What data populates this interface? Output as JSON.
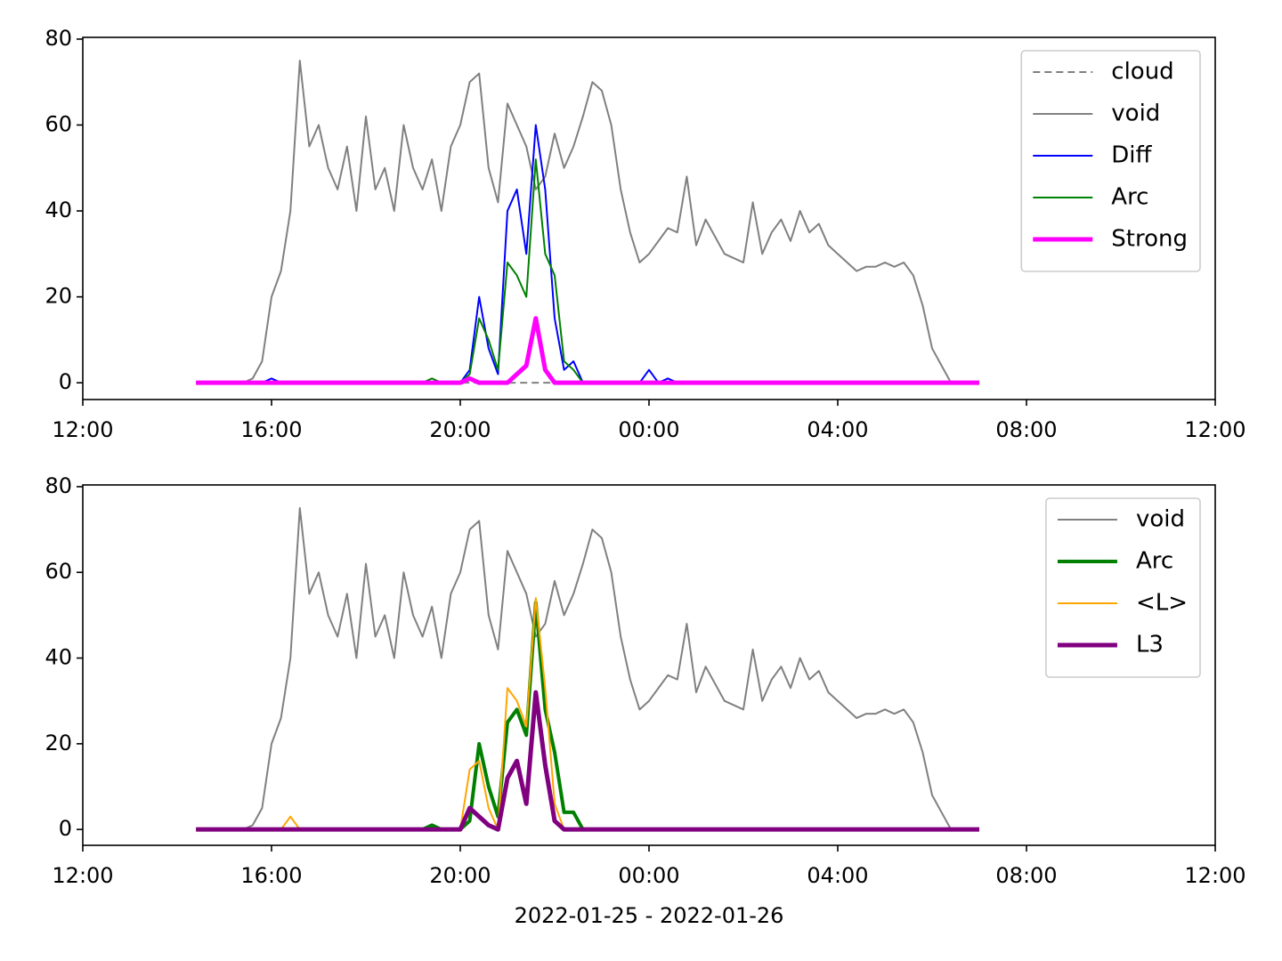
{
  "chart_data": [
    {
      "type": "line",
      "x": [
        14.4,
        14.6,
        14.8,
        15,
        15.2,
        15.4,
        15.6,
        15.8,
        16,
        16.2,
        16.4,
        16.6,
        16.8,
        17,
        17.2,
        17.4,
        17.6,
        17.8,
        18,
        18.2,
        18.4,
        18.6,
        18.8,
        19,
        19.2,
        19.4,
        19.6,
        19.8,
        20,
        20.2,
        20.4,
        20.6,
        20.8,
        21,
        21.2,
        21.4,
        21.6,
        21.8,
        22,
        22.2,
        22.4,
        22.6,
        22.8,
        23,
        23.2,
        23.4,
        23.6,
        23.8,
        24,
        24.2,
        24.4,
        24.6,
        24.8,
        25,
        25.2,
        25.4,
        25.6,
        25.8,
        26,
        26.2,
        26.4,
        26.6,
        26.8,
        27,
        27.2,
        27.4,
        27.6,
        27.8,
        28,
        28.2,
        28.4,
        28.6,
        28.8,
        29,
        29.2,
        29.4,
        29.6,
        29.8,
        30,
        30.2,
        30.4,
        30.6,
        30.8,
        31
      ],
      "xlim": [
        12,
        36
      ],
      "xticks": [
        {
          "value": 12,
          "label": "12:00"
        },
        {
          "value": 16,
          "label": "16:00"
        },
        {
          "value": 20,
          "label": "20:00"
        },
        {
          "value": 24,
          "label": "00:00"
        },
        {
          "value": 28,
          "label": "04:00"
        },
        {
          "value": 32,
          "label": "08:00"
        },
        {
          "value": 36,
          "label": "12:00"
        }
      ],
      "ylim": [
        -3.9,
        80.4
      ],
      "yticks": [
        0,
        20,
        40,
        60,
        80
      ],
      "legend": "upper right",
      "series": [
        {
          "name": "cloud",
          "color": "#808080",
          "linestyle": "dashed",
          "linewidth": 2,
          "values": [
            0,
            0,
            0,
            0,
            0,
            0,
            0,
            0,
            0,
            0,
            0,
            0,
            0,
            0,
            0,
            0,
            0,
            0,
            0,
            0,
            0,
            0,
            0,
            0,
            0,
            0,
            0,
            0,
            0,
            0,
            0,
            0,
            0,
            0,
            0,
            0,
            0,
            0,
            0,
            0,
            0,
            0,
            0,
            0,
            0,
            0,
            0,
            0,
            0,
            0,
            0,
            0,
            0,
            0,
            0,
            0,
            0,
            0,
            0,
            0,
            0,
            0,
            0,
            0,
            0,
            0,
            0,
            0,
            0,
            0,
            0,
            0,
            0,
            0,
            0,
            0,
            0,
            0,
            0,
            0,
            0,
            0,
            0,
            0
          ]
        },
        {
          "name": "void",
          "color": "#808080",
          "linestyle": "solid",
          "linewidth": 2,
          "values": [
            0,
            0,
            0,
            0,
            0,
            0,
            1,
            5,
            20,
            26,
            40,
            75,
            55,
            60,
            50,
            45,
            55,
            40,
            62,
            45,
            50,
            40,
            60,
            50,
            45,
            52,
            40,
            55,
            60,
            70,
            72,
            50,
            42,
            65,
            60,
            55,
            45,
            48,
            58,
            50,
            55,
            62,
            70,
            68,
            60,
            45,
            35,
            28,
            30,
            33,
            36,
            35,
            48,
            32,
            38,
            34,
            30,
            29,
            28,
            42,
            30,
            35,
            38,
            33,
            40,
            35,
            37,
            32,
            30,
            28,
            26,
            27,
            27,
            28,
            27,
            28,
            25,
            18,
            8,
            4,
            0,
            0,
            0,
            0
          ]
        },
        {
          "name": "Diff",
          "color": "#0000ff",
          "linestyle": "solid",
          "linewidth": 2,
          "values": [
            0,
            0,
            0,
            0,
            0,
            0,
            0,
            0,
            1,
            0,
            0,
            0,
            0,
            0,
            0,
            0,
            0,
            0,
            0,
            0,
            0,
            0,
            0,
            0,
            0,
            0,
            0,
            0,
            0,
            3,
            20,
            8,
            2,
            40,
            45,
            30,
            60,
            45,
            15,
            3,
            5,
            0,
            0,
            0,
            0,
            0,
            0,
            0,
            3,
            0,
            1,
            0,
            0,
            0,
            0,
            0,
            0,
            0,
            0,
            0,
            0,
            0,
            0,
            0,
            0,
            0,
            0,
            0,
            0,
            0,
            0,
            0,
            0,
            0,
            0,
            0,
            0,
            0,
            0,
            0,
            0,
            0,
            0,
            0
          ]
        },
        {
          "name": "Arc",
          "color": "#008000",
          "linestyle": "solid",
          "linewidth": 2,
          "values": [
            0,
            0,
            0,
            0,
            0,
            0,
            0,
            0,
            0,
            0,
            0,
            0,
            0,
            0,
            0,
            0,
            0,
            0,
            0,
            0,
            0,
            0,
            0,
            0,
            0,
            1,
            0,
            0,
            0,
            2,
            15,
            10,
            3,
            28,
            25,
            20,
            52,
            30,
            25,
            5,
            3,
            0,
            0,
            0,
            0,
            0,
            0,
            0,
            0,
            0,
            0,
            0,
            0,
            0,
            0,
            0,
            0,
            0,
            0,
            0,
            0,
            0,
            0,
            0,
            0,
            0,
            0,
            0,
            0,
            0,
            0,
            0,
            0,
            0,
            0,
            0,
            0,
            0,
            0,
            0,
            0,
            0,
            0,
            0
          ]
        },
        {
          "name": "Strong",
          "color": "#ff00ff",
          "linestyle": "solid",
          "linewidth": 5,
          "values": [
            0,
            0,
            0,
            0,
            0,
            0,
            0,
            0,
            0,
            0,
            0,
            0,
            0,
            0,
            0,
            0,
            0,
            0,
            0,
            0,
            0,
            0,
            0,
            0,
            0,
            0,
            0,
            0,
            0,
            1,
            0,
            0,
            0,
            0,
            2,
            4,
            15,
            3,
            0,
            0,
            0,
            0,
            0,
            0,
            0,
            0,
            0,
            0,
            0,
            0,
            0,
            0,
            0,
            0,
            0,
            0,
            0,
            0,
            0,
            0,
            0,
            0,
            0,
            0,
            0,
            0,
            0,
            0,
            0,
            0,
            0,
            0,
            0,
            0,
            0,
            0,
            0,
            0,
            0,
            0,
            0,
            0,
            0,
            0
          ]
        }
      ]
    },
    {
      "type": "line",
      "x": [
        14.4,
        14.6,
        14.8,
        15,
        15.2,
        15.4,
        15.6,
        15.8,
        16,
        16.2,
        16.4,
        16.6,
        16.8,
        17,
        17.2,
        17.4,
        17.6,
        17.8,
        18,
        18.2,
        18.4,
        18.6,
        18.8,
        19,
        19.2,
        19.4,
        19.6,
        19.8,
        20,
        20.2,
        20.4,
        20.6,
        20.8,
        21,
        21.2,
        21.4,
        21.6,
        21.8,
        22,
        22.2,
        22.4,
        22.6,
        22.8,
        23,
        23.2,
        23.4,
        23.6,
        23.8,
        24,
        24.2,
        24.4,
        24.6,
        24.8,
        25,
        25.2,
        25.4,
        25.6,
        25.8,
        26,
        26.2,
        26.4,
        26.6,
        26.8,
        27,
        27.2,
        27.4,
        27.6,
        27.8,
        28,
        28.2,
        28.4,
        28.6,
        28.8,
        29,
        29.2,
        29.4,
        29.6,
        29.8,
        30,
        30.2,
        30.4,
        30.6,
        30.8,
        31
      ],
      "xlim": [
        12,
        36
      ],
      "xticks": [
        {
          "value": 12,
          "label": "12:00"
        },
        {
          "value": 16,
          "label": "16:00"
        },
        {
          "value": 20,
          "label": "20:00"
        },
        {
          "value": 24,
          "label": "00:00"
        },
        {
          "value": 28,
          "label": "04:00"
        },
        {
          "value": 32,
          "label": "08:00"
        },
        {
          "value": 36,
          "label": "12:00"
        }
      ],
      "ylim": [
        -3.7,
        80.4
      ],
      "yticks": [
        0,
        20,
        40,
        60,
        80
      ],
      "xlabel": "2022-01-25 - 2022-01-26",
      "legend": "upper right",
      "series": [
        {
          "name": "void",
          "color": "#808080",
          "linestyle": "solid",
          "linewidth": 2,
          "values": [
            0,
            0,
            0,
            0,
            0,
            0,
            1,
            5,
            20,
            26,
            40,
            75,
            55,
            60,
            50,
            45,
            55,
            40,
            62,
            45,
            50,
            40,
            60,
            50,
            45,
            52,
            40,
            55,
            60,
            70,
            72,
            50,
            42,
            65,
            60,
            55,
            45,
            48,
            58,
            50,
            55,
            62,
            70,
            68,
            60,
            45,
            35,
            28,
            30,
            33,
            36,
            35,
            48,
            32,
            38,
            34,
            30,
            29,
            28,
            42,
            30,
            35,
            38,
            33,
            40,
            35,
            37,
            32,
            30,
            28,
            26,
            27,
            27,
            28,
            27,
            28,
            25,
            18,
            8,
            4,
            0,
            0,
            0,
            0
          ]
        },
        {
          "name": "Arc",
          "color": "#008000",
          "linestyle": "solid",
          "linewidth": 4,
          "values": [
            0,
            0,
            0,
            0,
            0,
            0,
            0,
            0,
            0,
            0,
            0,
            0,
            0,
            0,
            0,
            0,
            0,
            0,
            0,
            0,
            0,
            0,
            0,
            0,
            0,
            1,
            0,
            0,
            0,
            2,
            20,
            10,
            3,
            25,
            28,
            22,
            53,
            28,
            18,
            4,
            4,
            0,
            0,
            0,
            0,
            0,
            0,
            0,
            0,
            0,
            0,
            0,
            0,
            0,
            0,
            0,
            0,
            0,
            0,
            0,
            0,
            0,
            0,
            0,
            0,
            0,
            0,
            0,
            0,
            0,
            0,
            0,
            0,
            0,
            0,
            0,
            0,
            0,
            0,
            0,
            0,
            0,
            0,
            0
          ]
        },
        {
          "name": "<L>",
          "color": "#ffa500",
          "linestyle": "solid",
          "linewidth": 2,
          "values": [
            0,
            0,
            0,
            0,
            0,
            0,
            0,
            0,
            0,
            0,
            3,
            0,
            0,
            0,
            0,
            0,
            0,
            0,
            0,
            0,
            0,
            0,
            0,
            0,
            0,
            0,
            0,
            0,
            0,
            14,
            16,
            5,
            0,
            33,
            30,
            24,
            54,
            33,
            6,
            0,
            0,
            0,
            0,
            0,
            0,
            0,
            0,
            0,
            0,
            0,
            0,
            0,
            0,
            0,
            0,
            0,
            0,
            0,
            0,
            0,
            0,
            0,
            0,
            0,
            0,
            0,
            0,
            0,
            0,
            0,
            0,
            0,
            0,
            0,
            0,
            0,
            0,
            0,
            0,
            0,
            0,
            0,
            0,
            0
          ]
        },
        {
          "name": "L3",
          "color": "#800080",
          "linestyle": "solid",
          "linewidth": 5,
          "values": [
            0,
            0,
            0,
            0,
            0,
            0,
            0,
            0,
            0,
            0,
            0,
            0,
            0,
            0,
            0,
            0,
            0,
            0,
            0,
            0,
            0,
            0,
            0,
            0,
            0,
            0,
            0,
            0,
            0,
            5,
            3,
            1,
            0,
            12,
            16,
            6,
            32,
            15,
            2,
            0,
            0,
            0,
            0,
            0,
            0,
            0,
            0,
            0,
            0,
            0,
            0,
            0,
            0,
            0,
            0,
            0,
            0,
            0,
            0,
            0,
            0,
            0,
            0,
            0,
            0,
            0,
            0,
            0,
            0,
            0,
            0,
            0,
            0,
            0,
            0,
            0,
            0,
            0,
            0,
            0,
            0,
            0,
            0,
            0
          ]
        }
      ]
    }
  ]
}
